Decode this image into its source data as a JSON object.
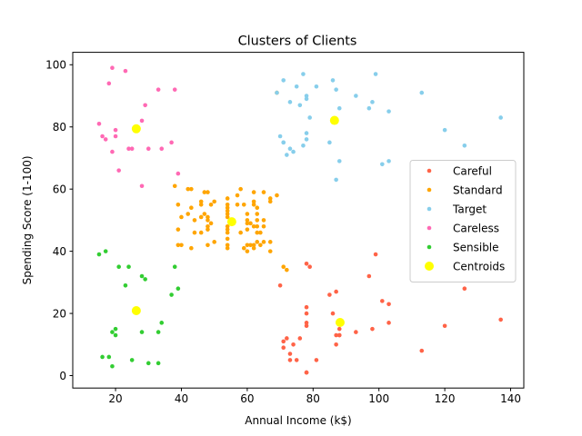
{
  "chart_data": {
    "type": "scatter",
    "title": "Clusters of Clients",
    "xlabel": "Annual Income (k$)",
    "ylabel": "Spending Score (1-100)",
    "xlim": [
      7,
      144
    ],
    "ylim": [
      -4,
      104
    ],
    "xticks": [
      20,
      40,
      60,
      80,
      100,
      120,
      140
    ],
    "yticks": [
      0,
      20,
      40,
      60,
      80,
      100
    ],
    "grid": false,
    "legend_position": "center-right",
    "series": [
      {
        "name": "Careful",
        "color": "#ff6347",
        "marker": "dot",
        "points": [
          [
            70,
            29
          ],
          [
            71,
            11
          ],
          [
            71,
            9
          ],
          [
            72,
            12
          ],
          [
            73,
            5
          ],
          [
            73,
            7
          ],
          [
            74,
            10
          ],
          [
            75,
            5
          ],
          [
            76,
            12
          ],
          [
            78,
            36
          ],
          [
            78,
            22
          ],
          [
            78,
            17
          ],
          [
            78,
            20
          ],
          [
            78,
            16
          ],
          [
            78,
            1
          ],
          [
            78,
            1
          ],
          [
            79,
            35
          ],
          [
            81,
            5
          ],
          [
            85,
            26
          ],
          [
            86,
            20
          ],
          [
            87,
            27
          ],
          [
            87,
            13
          ],
          [
            87,
            10
          ],
          [
            88,
            13
          ],
          [
            88,
            15
          ],
          [
            88,
            13
          ],
          [
            93,
            14
          ],
          [
            97,
            32
          ],
          [
            98,
            15
          ],
          [
            99,
            39
          ],
          [
            101,
            24
          ],
          [
            103,
            23
          ],
          [
            103,
            17
          ],
          [
            113,
            8
          ],
          [
            120,
            16
          ],
          [
            126,
            28
          ],
          [
            137,
            18
          ]
        ]
      },
      {
        "name": "Standard",
        "color": "#ffa500",
        "marker": "dot",
        "points": [
          [
            38,
            61
          ],
          [
            39,
            55
          ],
          [
            39,
            47
          ],
          [
            39,
            42
          ],
          [
            40,
            42
          ],
          [
            40,
            51
          ],
          [
            42,
            52
          ],
          [
            42,
            60
          ],
          [
            43,
            60
          ],
          [
            43,
            41
          ],
          [
            43,
            54
          ],
          [
            44,
            46
          ],
          [
            44,
            50
          ],
          [
            46,
            51
          ],
          [
            46,
            46
          ],
          [
            46,
            56
          ],
          [
            46,
            55
          ],
          [
            47,
            52
          ],
          [
            47,
            59
          ],
          [
            48,
            51
          ],
          [
            48,
            59
          ],
          [
            48,
            50
          ],
          [
            48,
            48
          ],
          [
            48,
            47
          ],
          [
            48,
            42
          ],
          [
            49,
            49
          ],
          [
            49,
            55
          ],
          [
            50,
            56
          ],
          [
            50,
            43
          ],
          [
            54,
            47
          ],
          [
            54,
            54
          ],
          [
            54,
            53
          ],
          [
            54,
            48
          ],
          [
            54,
            52
          ],
          [
            54,
            42
          ],
          [
            54,
            51
          ],
          [
            54,
            55
          ],
          [
            54,
            41
          ],
          [
            54,
            44
          ],
          [
            54,
            57
          ],
          [
            54,
            46
          ],
          [
            57,
            58
          ],
          [
            57,
            55
          ],
          [
            58,
            60
          ],
          [
            58,
            46
          ],
          [
            59,
            55
          ],
          [
            59,
            41
          ],
          [
            60,
            49
          ],
          [
            60,
            40
          ],
          [
            60,
            42
          ],
          [
            60,
            52
          ],
          [
            60,
            47
          ],
          [
            60,
            50
          ],
          [
            61,
            42
          ],
          [
            61,
            49
          ],
          [
            62,
            41
          ],
          [
            62,
            48
          ],
          [
            62,
            59
          ],
          [
            62,
            55
          ],
          [
            62,
            56
          ],
          [
            62,
            42
          ],
          [
            63,
            50
          ],
          [
            63,
            46
          ],
          [
            63,
            43
          ],
          [
            63,
            48
          ],
          [
            63,
            52
          ],
          [
            63,
            54
          ],
          [
            64,
            42
          ],
          [
            64,
            46
          ],
          [
            65,
            48
          ],
          [
            65,
            50
          ],
          [
            65,
            43
          ],
          [
            65,
            59
          ],
          [
            67,
            43
          ],
          [
            67,
            57
          ],
          [
            67,
            56
          ],
          [
            67,
            40
          ],
          [
            69,
            58
          ],
          [
            69,
            91
          ],
          [
            71,
            35
          ],
          [
            72,
            34
          ]
        ]
      },
      {
        "name": "Target",
        "color": "#87ceeb",
        "marker": "dot",
        "points": [
          [
            69,
            91
          ],
          [
            70,
            77
          ],
          [
            71,
            95
          ],
          [
            71,
            75
          ],
          [
            71,
            75
          ],
          [
            72,
            71
          ],
          [
            73,
            88
          ],
          [
            73,
            73
          ],
          [
            74,
            72
          ],
          [
            75,
            93
          ],
          [
            76,
            87
          ],
          [
            77,
            97
          ],
          [
            77,
            74
          ],
          [
            78,
            90
          ],
          [
            78,
            76
          ],
          [
            78,
            89
          ],
          [
            78,
            78
          ],
          [
            79,
            83
          ],
          [
            81,
            93
          ],
          [
            85,
            75
          ],
          [
            86,
            95
          ],
          [
            87,
            63
          ],
          [
            87,
            92
          ],
          [
            88,
            69
          ],
          [
            88,
            86
          ],
          [
            93,
            90
          ],
          [
            97,
            86
          ],
          [
            98,
            88
          ],
          [
            99,
            97
          ],
          [
            101,
            68
          ],
          [
            103,
            85
          ],
          [
            103,
            69
          ],
          [
            113,
            91
          ],
          [
            120,
            79
          ],
          [
            126,
            74
          ],
          [
            137,
            83
          ]
        ]
      },
      {
        "name": "Careless",
        "color": "#ff69b4",
        "marker": "dot",
        "points": [
          [
            15,
            81
          ],
          [
            16,
            77
          ],
          [
            17,
            76
          ],
          [
            18,
            94
          ],
          [
            19,
            72
          ],
          [
            19,
            99
          ],
          [
            20,
            77
          ],
          [
            20,
            79
          ],
          [
            21,
            66
          ],
          [
            23,
            98
          ],
          [
            24,
            73
          ],
          [
            25,
            73
          ],
          [
            28,
            82
          ],
          [
            28,
            61
          ],
          [
            29,
            87
          ],
          [
            30,
            73
          ],
          [
            33,
            92
          ],
          [
            34,
            73
          ],
          [
            37,
            75
          ],
          [
            38,
            92
          ],
          [
            39,
            65
          ]
        ]
      },
      {
        "name": "Sensible",
        "color": "#32cd32",
        "marker": "dot",
        "points": [
          [
            15,
            39
          ],
          [
            16,
            6
          ],
          [
            17,
            40
          ],
          [
            18,
            6
          ],
          [
            19,
            3
          ],
          [
            19,
            14
          ],
          [
            20,
            15
          ],
          [
            20,
            13
          ],
          [
            21,
            35
          ],
          [
            23,
            29
          ],
          [
            24,
            35
          ],
          [
            25,
            5
          ],
          [
            28,
            14
          ],
          [
            28,
            32
          ],
          [
            29,
            31
          ],
          [
            30,
            4
          ],
          [
            33,
            4
          ],
          [
            33,
            14
          ],
          [
            34,
            17
          ],
          [
            37,
            26
          ],
          [
            38,
            35
          ],
          [
            39,
            28
          ]
        ]
      },
      {
        "name": "Centroids",
        "color": "#ffff00",
        "marker": "large-dot",
        "points": [
          [
            26.3,
            79.4
          ],
          [
            55.3,
            49.5
          ],
          [
            86.5,
            82.1
          ],
          [
            88.2,
            17.1
          ],
          [
            26.3,
            20.9
          ]
        ]
      }
    ]
  }
}
